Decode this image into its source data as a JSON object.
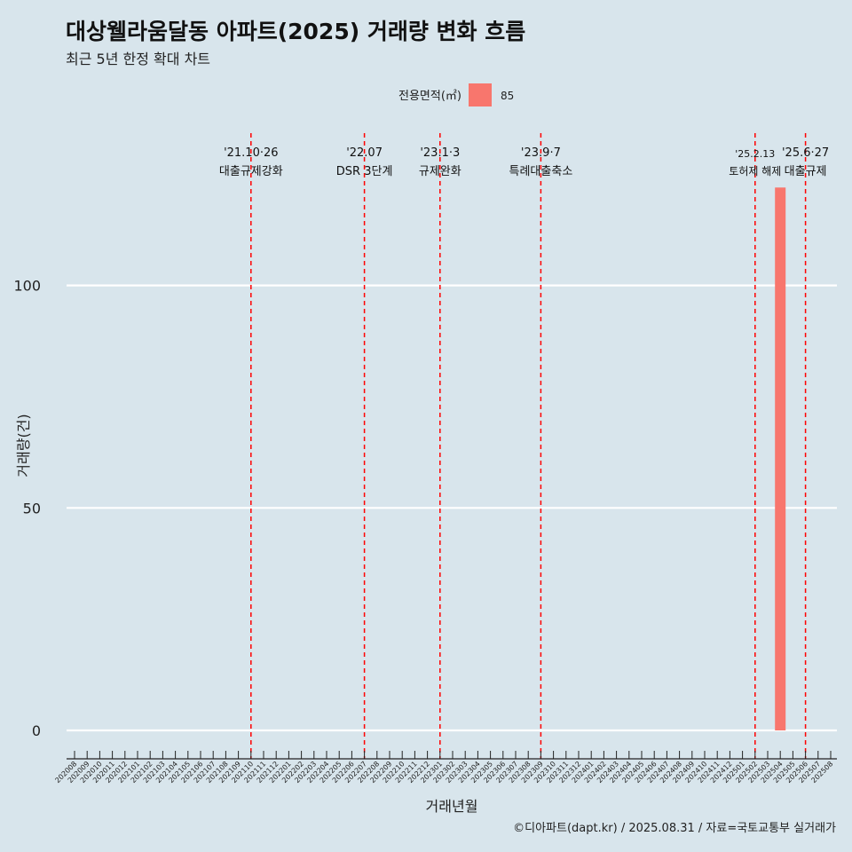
{
  "chart_data": {
    "type": "bar",
    "title": "대상웰라움달동 아파트(2025) 거래량 변화 흐름",
    "subtitle": "최근 5년 한정 확대 차트",
    "xlabel": "거래년월",
    "ylabel": "거래량(건)",
    "ylim": [
      0,
      120
    ],
    "yticks": [
      0,
      50,
      100
    ],
    "grid": "horizontal",
    "legend": {
      "title": "전용면적(㎡)",
      "placement": "top",
      "entries": [
        {
          "label": "85",
          "color": "#f8766d"
        }
      ]
    },
    "categories": [
      "202008",
      "202009",
      "202010",
      "202011",
      "202012",
      "202101",
      "202102",
      "202103",
      "202104",
      "202105",
      "202106",
      "202107",
      "202108",
      "202109",
      "202110",
      "202111",
      "202112",
      "202201",
      "202202",
      "202203",
      "202204",
      "202205",
      "202206",
      "202207",
      "202208",
      "202209",
      "202210",
      "202211",
      "202212",
      "202301",
      "202302",
      "202303",
      "202304",
      "202305",
      "202306",
      "202307",
      "202308",
      "202309",
      "202310",
      "202311",
      "202312",
      "202401",
      "202402",
      "202403",
      "202404",
      "202405",
      "202406",
      "202407",
      "202408",
      "202409",
      "202410",
      "202411",
      "202412",
      "202501",
      "202502",
      "202503",
      "202504",
      "202505",
      "202506",
      "202507",
      "202508"
    ],
    "series": [
      {
        "name": "85",
        "color": "#f8766d",
        "points": [
          {
            "x": "202504",
            "y": 122
          }
        ]
      }
    ],
    "annotations": [
      {
        "x": "202110",
        "date": "'21.10·26",
        "label": "대출규제강화"
      },
      {
        "x": "202207",
        "date": "'22.07",
        "label": "DSR 3단계"
      },
      {
        "x": "202301",
        "date": "'23.1·3",
        "label": "규제완화"
      },
      {
        "x": "202309",
        "date": "'23.9·7",
        "label": "특례대출축소"
      },
      {
        "x": "202502",
        "date": "'25.2.13",
        "label": "토허제 해제"
      },
      {
        "x": "202506",
        "date": "'25.6·27",
        "label": "대출규제"
      }
    ],
    "annotation_color": "#ff0000"
  },
  "caption": "©디아파트(dapt.kr) / 2025.08.31 / 자료=국토교통부 실거래가"
}
